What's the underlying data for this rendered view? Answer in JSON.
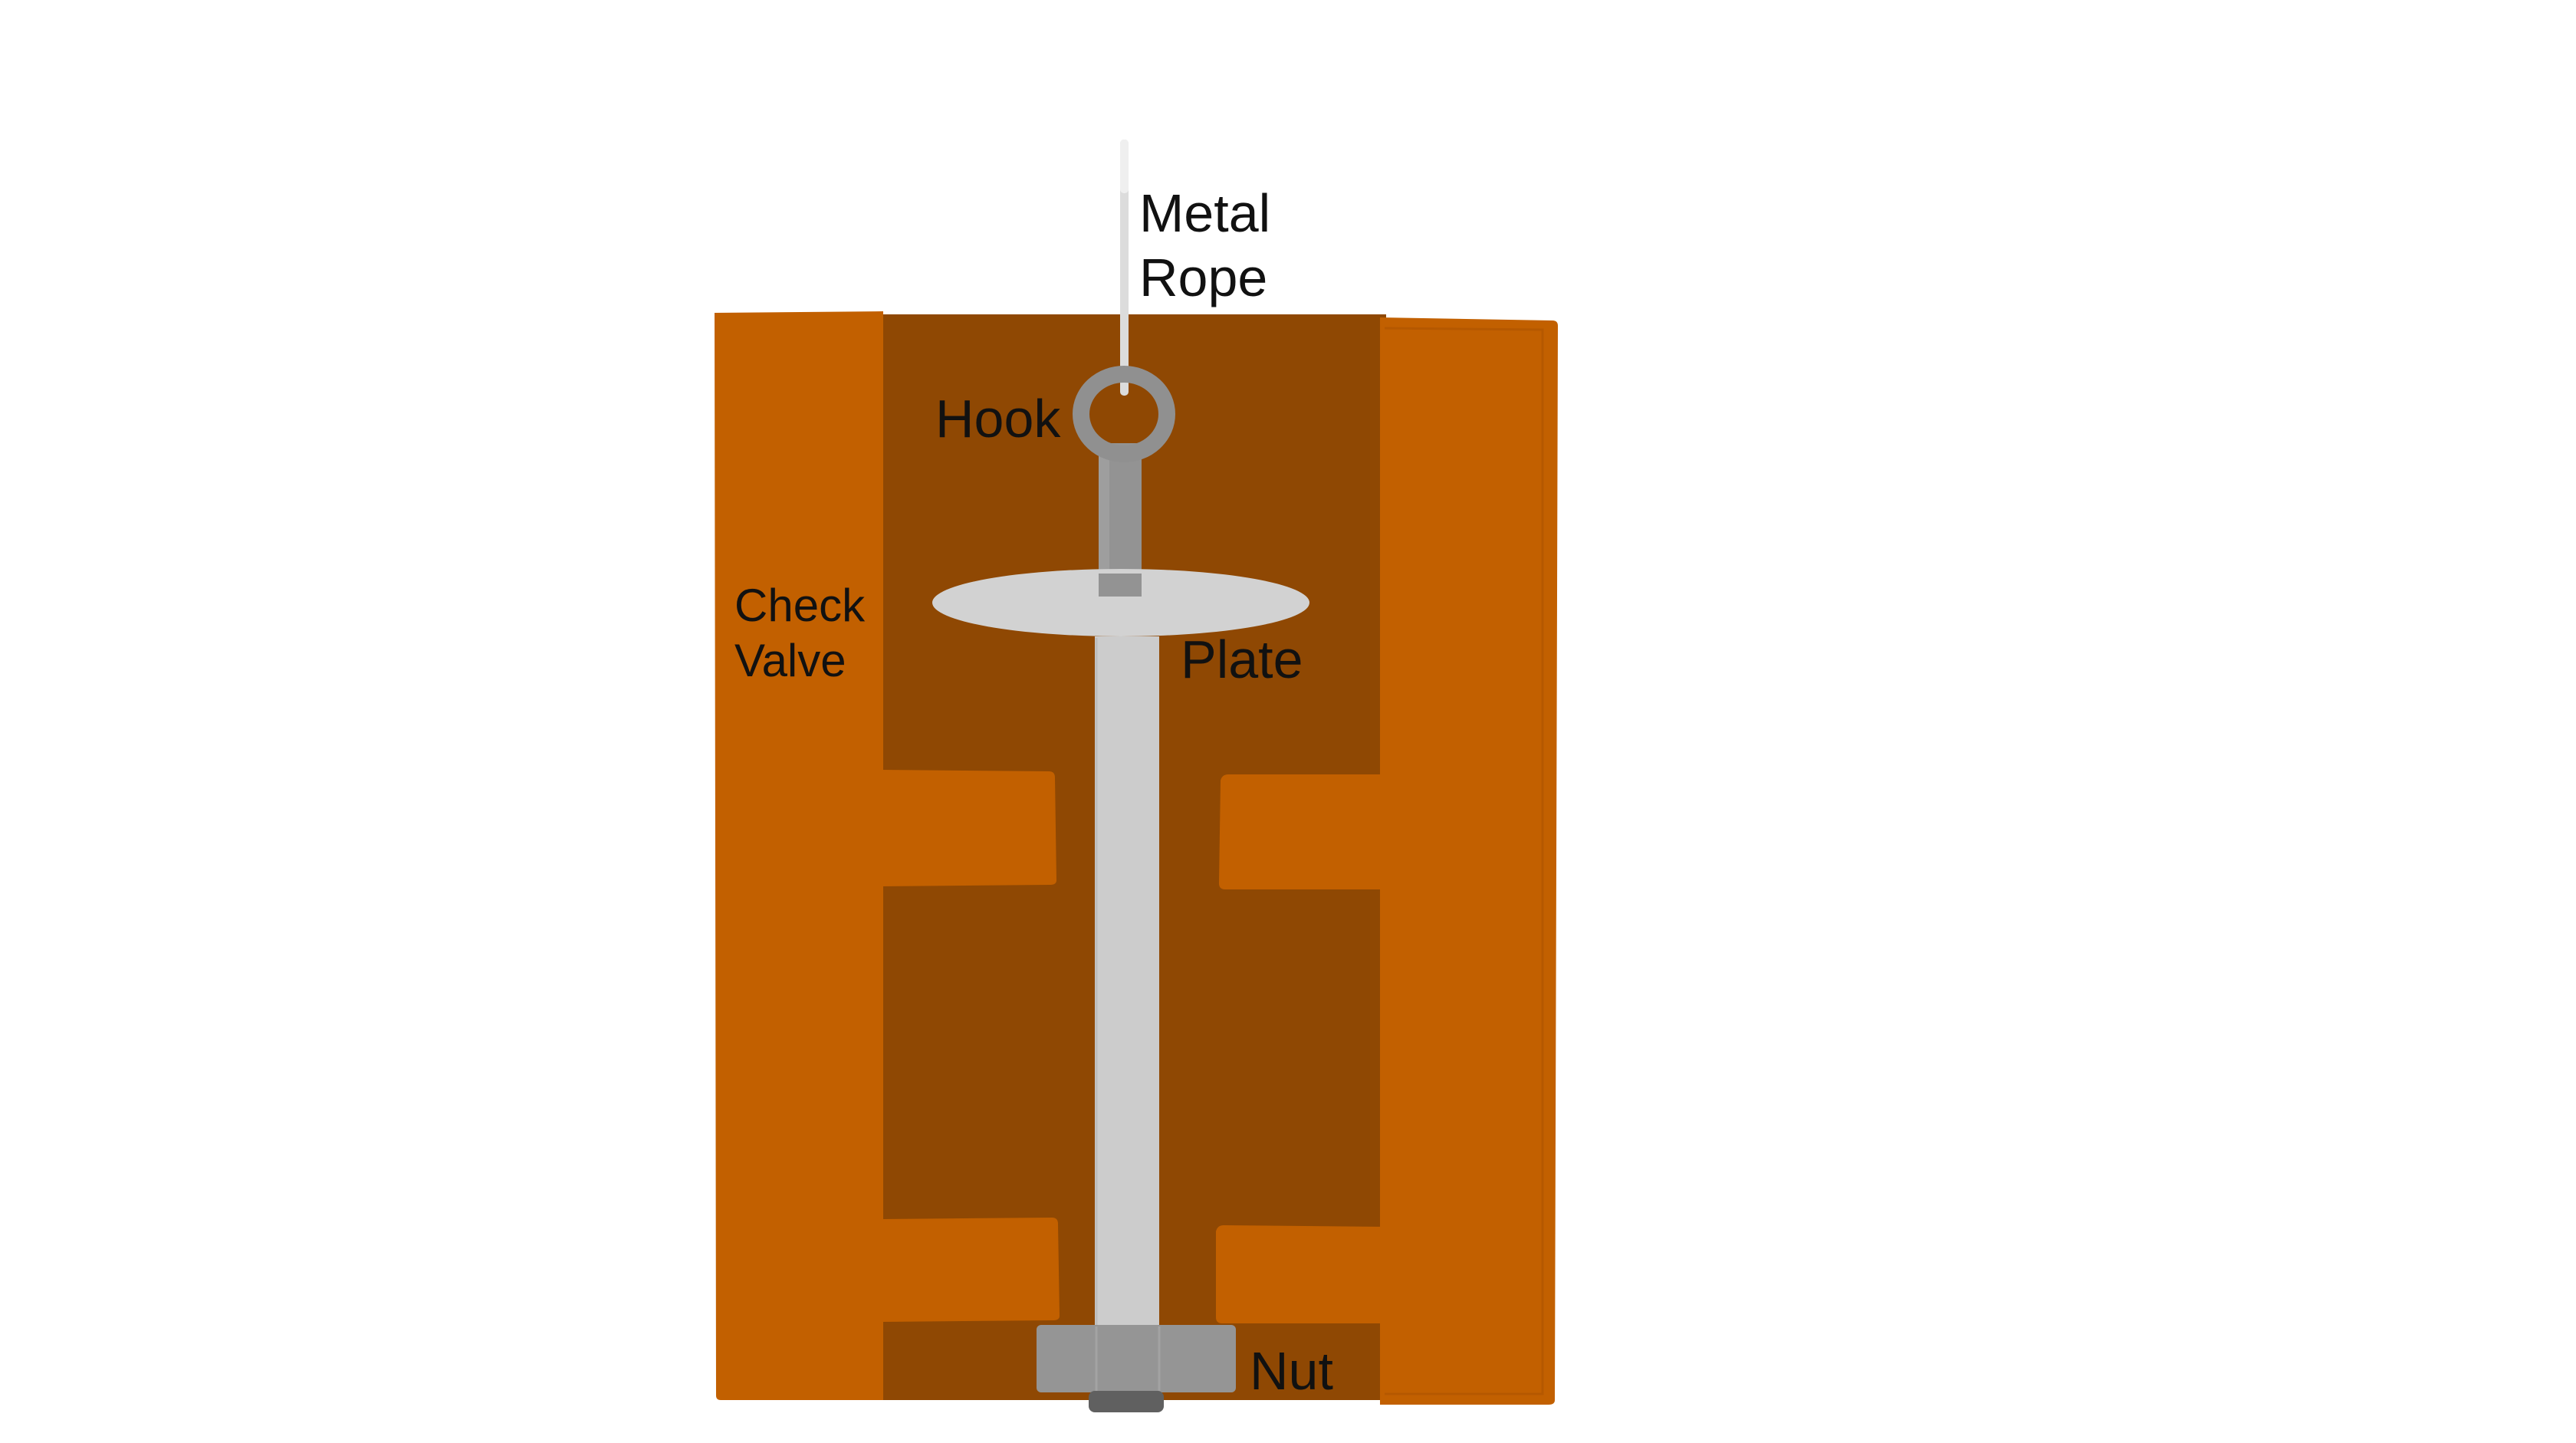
{
  "labels": {
    "metal_rope_line1": "Metal",
    "metal_rope_line2": "Rope",
    "hook": "Hook",
    "check_valve_line1": "Check",
    "check_valve_line2": "Valve",
    "plate": "Plate",
    "nut": "Nut"
  },
  "colors": {
    "outer_wall": "#c26000",
    "inner_cavity": "#8f4803",
    "rod": "#cccccc",
    "plate": "#d2d2d2",
    "hook": "#909090",
    "nut": "#959595",
    "nut_bottom": "#606060",
    "rope": "#dcdcdc",
    "text": "#111111"
  }
}
